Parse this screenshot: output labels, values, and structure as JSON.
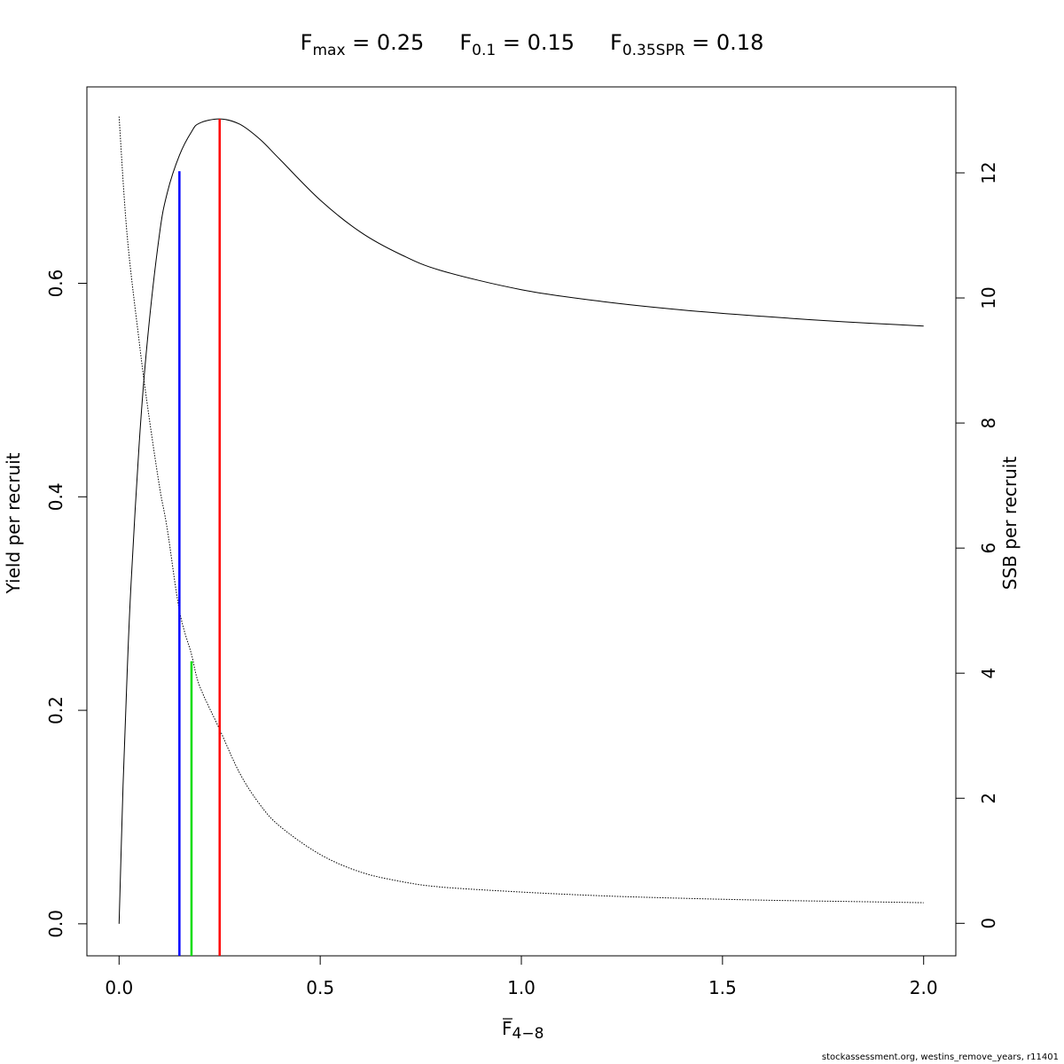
{
  "title": {
    "fmax": {
      "symbol": "F",
      "sub": "max",
      "eq": " = ",
      "value": "0.25"
    },
    "f01": {
      "symbol": "F",
      "sub": "0.1",
      "eq": " = ",
      "value": "0.15"
    },
    "fspr": {
      "symbol": "F",
      "sub": "0.35SPR",
      "eq": " = ",
      "value": "0.18"
    }
  },
  "xlabel": {
    "symbol": "F",
    "sub": "4−8"
  },
  "footer": "stockassessment.org, westins_remove_years, r11401",
  "chart_data": {
    "type": "line",
    "xlim": [
      -0.08,
      2.08
    ],
    "x_ticks": [
      0.0,
      0.5,
      1.0,
      1.5,
      2.0
    ],
    "x_tick_labels": [
      "0.0",
      "0.5",
      "1.0",
      "1.5",
      "2.0"
    ],
    "y_left": {
      "label": "Yield per recruit",
      "lim": [
        -0.03,
        0.784
      ],
      "ticks": [
        0.0,
        0.2,
        0.4,
        0.6
      ],
      "tick_labels": [
        "0.0",
        "0.2",
        "0.4",
        "0.6"
      ]
    },
    "y_right": {
      "label": "SSB per recruit",
      "lim": [
        -0.52,
        13.375
      ],
      "ticks": [
        0,
        2,
        4,
        6,
        8,
        10,
        12
      ],
      "tick_labels": [
        "0",
        "2",
        "4",
        "6",
        "8",
        "10",
        "12"
      ]
    },
    "series": [
      {
        "axis": "left",
        "style": "solid",
        "color": "#000000",
        "x": [
          0,
          0.01,
          0.02,
          0.03,
          0.05,
          0.07,
          0.1,
          0.12,
          0.15,
          0.18,
          0.2,
          0.25,
          0.3,
          0.35,
          0.4,
          0.5,
          0.6,
          0.7,
          0.8,
          1.0,
          1.2,
          1.4,
          1.6,
          1.8,
          2.0
        ],
        "y": [
          0.0,
          0.13,
          0.235,
          0.32,
          0.45,
          0.545,
          0.645,
          0.685,
          0.72,
          0.742,
          0.75,
          0.754,
          0.749,
          0.735,
          0.716,
          0.678,
          0.648,
          0.627,
          0.612,
          0.594,
          0.583,
          0.575,
          0.569,
          0.564,
          0.56
        ]
      },
      {
        "axis": "right",
        "style": "dotted",
        "color": "#000000",
        "x": [
          0,
          0.02,
          0.05,
          0.07,
          0.1,
          0.12,
          0.15,
          0.18,
          0.2,
          0.25,
          0.3,
          0.35,
          0.4,
          0.5,
          0.6,
          0.7,
          0.8,
          1.0,
          1.2,
          1.4,
          1.6,
          1.8,
          2.0
        ],
        "y": [
          12.9,
          11.0,
          9.3,
          8.3,
          7.0,
          6.3,
          5.0,
          4.3,
          3.8,
          3.1,
          2.4,
          1.9,
          1.55,
          1.1,
          0.82,
          0.67,
          0.58,
          0.5,
          0.44,
          0.4,
          0.37,
          0.35,
          0.33
        ]
      }
    ],
    "reference_lines": [
      {
        "name": "F0.1",
        "x": 0.15,
        "y_top": 0.705,
        "color": "#0000ff"
      },
      {
        "name": "F0.35SPR",
        "x": 0.18,
        "y_top": 0.246,
        "color": "#00dd00"
      },
      {
        "name": "Fmax",
        "x": 0.25,
        "y_top": 0.754,
        "color": "#ff0000"
      }
    ]
  }
}
